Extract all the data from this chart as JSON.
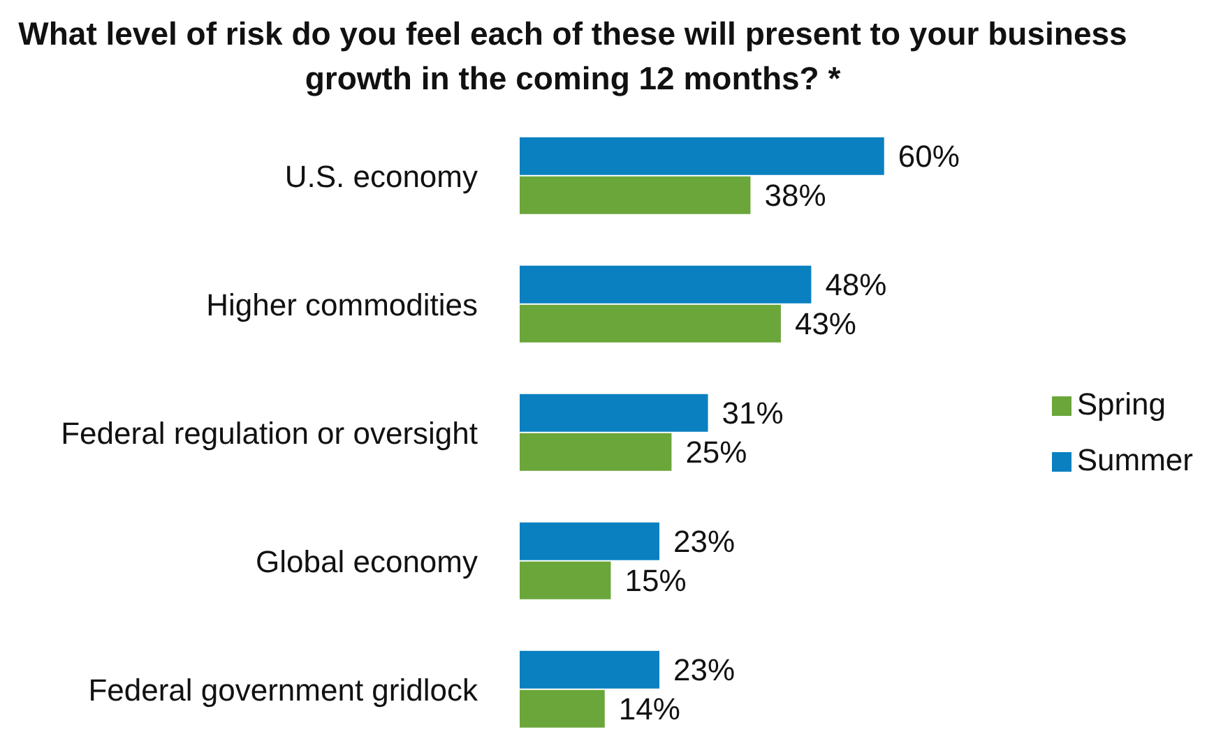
{
  "chart_data": {
    "type": "bar",
    "orientation": "horizontal",
    "title": "What level of risk do you feel each of these will present to your business growth in the coming 12 months? *",
    "categories": [
      "U.S. economy",
      "Higher commodities",
      "Federal regulation or oversight",
      "Global economy",
      "Federal government gridlock"
    ],
    "series": [
      {
        "name": "Summer",
        "color": "#0a80c0",
        "values": [
          60,
          48,
          31,
          23,
          23
        ],
        "value_labels": [
          "60%",
          "48%",
          "31%",
          "23%",
          "23%"
        ]
      },
      {
        "name": "Spring",
        "color": "#6aa63a",
        "values": [
          38,
          43,
          25,
          15,
          14
        ],
        "value_labels": [
          "38%",
          "43%",
          "25%",
          "15%",
          "14%"
        ]
      }
    ],
    "legend": "right"
  }
}
